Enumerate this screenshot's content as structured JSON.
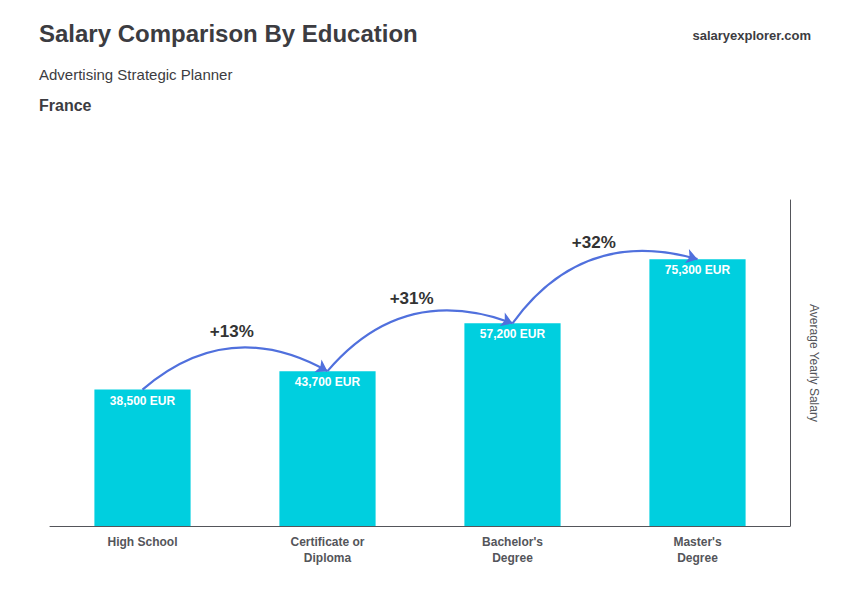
{
  "chart_data": {
    "type": "bar",
    "title": "Salary Comparison By Education",
    "subtitle": "Advertising Strategic Planner",
    "ylabel": "Average Yearly Salary",
    "categories": [
      "High School",
      "Certificate or\nDiploma",
      "Bachelor's\nDegree",
      "Master's\nDegree"
    ],
    "values": [
      38500,
      43700,
      57200,
      75300
    ],
    "value_labels": [
      "38,500 EUR",
      "43,700 EUR",
      "57,200 EUR",
      "75,300 EUR"
    ],
    "color": "#00cfdf",
    "ylim": [
      0,
      92000
    ],
    "grid": false,
    "tick_labels": "x",
    "data_labels": true,
    "annotations": [
      {
        "text": "France"
      },
      {
        "text": "salaryexplorer.com"
      },
      {
        "text": "+13%",
        "from": "High School",
        "to": "Certificate or\nDiploma"
      },
      {
        "text": "+31%",
        "from": "Certificate or\nDiploma",
        "to": "Bachelor's\nDegree"
      },
      {
        "text": "+32%",
        "from": "Bachelor's\nDegree",
        "to": "Master's\nDegree"
      }
    ]
  }
}
